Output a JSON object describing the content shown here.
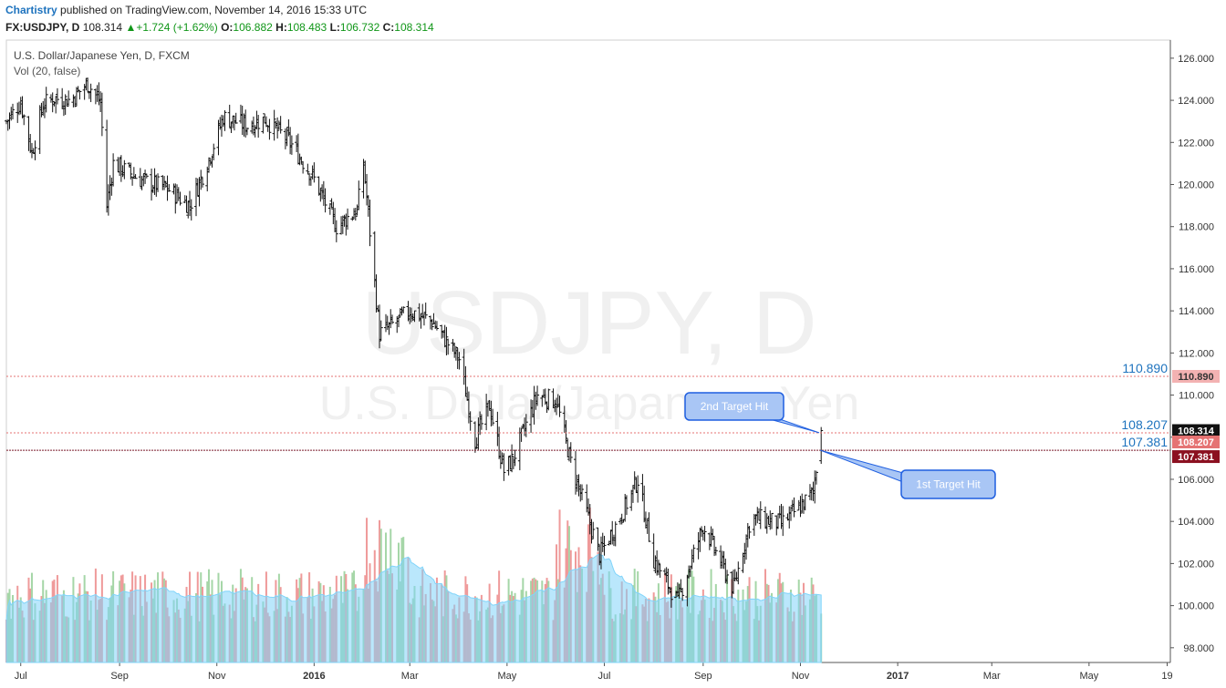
{
  "header": {
    "author": "Chartistry",
    "published": "published on TradingView.com, November 14, 2016 15:33 UTC",
    "symbol": "FX:USDJPY, D",
    "last": "108.314",
    "change": "+1.724 (+1.62%)",
    "o_label": "O:",
    "o_value": "106.882",
    "h_label": "H:",
    "h_value": "108.483",
    "l_label": "L:",
    "l_value": "106.732",
    "c_label": "C:",
    "c_value": "108.314"
  },
  "legend": {
    "instrument": "U.S. Dollar/Japanese Yen, D, FXCM",
    "volume": "Vol (20, false)"
  },
  "watermark": {
    "line1": "USDJPY, D",
    "line2": "U.S. Dollar/Japanese Yen"
  },
  "colors": {
    "candle": "#111111",
    "vol_up": "#a5d6a7",
    "vol_down": "#ef9a9a",
    "vol_ma": "#81d4fa",
    "level_line": "#e57373",
    "level_text": "#1e73be",
    "label_fill": "#a9c6f5",
    "label_stroke": "#1f5fe0"
  },
  "chart_data": {
    "type": "candlestick",
    "title": "U.S. Dollar/Japanese Yen, D, FXCM",
    "x_ticks": [
      "Jul",
      "Sep",
      "Nov",
      "2016",
      "Mar",
      "May",
      "Jul",
      "Sep",
      "Nov",
      "2017",
      "Mar",
      "May",
      "19"
    ],
    "y_ticks": [
      "126.000",
      "124.000",
      "122.000",
      "120.000",
      "118.000",
      "116.000",
      "114.000",
      "112.000",
      "110.000",
      "108.000",
      "106.000",
      "104.000",
      "102.000",
      "100.000",
      "98.000"
    ],
    "ylim": [
      97.3,
      126.6
    ],
    "x_range": [
      "2015-06-22",
      "2017-06-21"
    ],
    "price_path_dates": [
      "2015-06-22",
      "2015-07-01",
      "2015-07-08",
      "2015-07-15",
      "2015-07-22",
      "2015-08-01",
      "2015-08-12",
      "2015-08-20",
      "2015-08-24",
      "2015-08-28",
      "2015-09-15",
      "2015-10-01",
      "2015-10-15",
      "2015-10-26",
      "2015-11-05",
      "2015-11-20",
      "2015-12-01",
      "2015-12-16",
      "2015-12-31",
      "2016-01-15",
      "2016-01-28",
      "2016-02-01",
      "2016-02-11",
      "2016-02-20",
      "2016-03-01",
      "2016-03-15",
      "2016-04-01",
      "2016-04-11",
      "2016-04-20",
      "2016-04-29",
      "2016-05-05",
      "2016-05-20",
      "2016-06-01",
      "2016-06-10",
      "2016-06-24",
      "2016-06-28",
      "2016-07-11",
      "2016-07-22",
      "2016-08-01",
      "2016-08-16",
      "2016-09-01",
      "2016-09-20",
      "2016-10-01",
      "2016-10-20",
      "2016-11-01",
      "2016-11-09",
      "2016-11-14"
    ],
    "price_path_closes": [
      123.0,
      123.9,
      121.5,
      123.8,
      124.1,
      124.0,
      124.8,
      123.9,
      119.0,
      121.0,
      120.2,
      119.8,
      119.0,
      121.0,
      123.2,
      122.8,
      123.1,
      122.1,
      120.4,
      118.0,
      118.8,
      121.0,
      112.9,
      113.4,
      114.0,
      113.5,
      111.7,
      107.9,
      109.5,
      106.4,
      107.0,
      110.0,
      109.7,
      106.8,
      103.4,
      102.4,
      104.2,
      106.0,
      102.2,
      100.2,
      103.8,
      100.8,
      104.2,
      103.9,
      104.7,
      105.4,
      108.314
    ],
    "volume_approx": "volume columns with a 20-period moving average, peaking in Feb 2016 and Jun 2016",
    "levels": [
      {
        "label": "110.890",
        "value": 110.89,
        "text": "110.890"
      },
      {
        "label": "108.207",
        "value": 108.207,
        "text": "108.207"
      },
      {
        "label": "107.381",
        "value": 107.381,
        "text": "107.381"
      }
    ],
    "last_price": {
      "label": "108.314",
      "value": 108.314
    },
    "annotations": [
      {
        "text": "2nd Target Hit",
        "target_date": "2016-11-11",
        "target_value": 108.3
      },
      {
        "text": "1st Target Hit",
        "target_date": "2016-11-10",
        "target_value": 107.38
      }
    ]
  }
}
